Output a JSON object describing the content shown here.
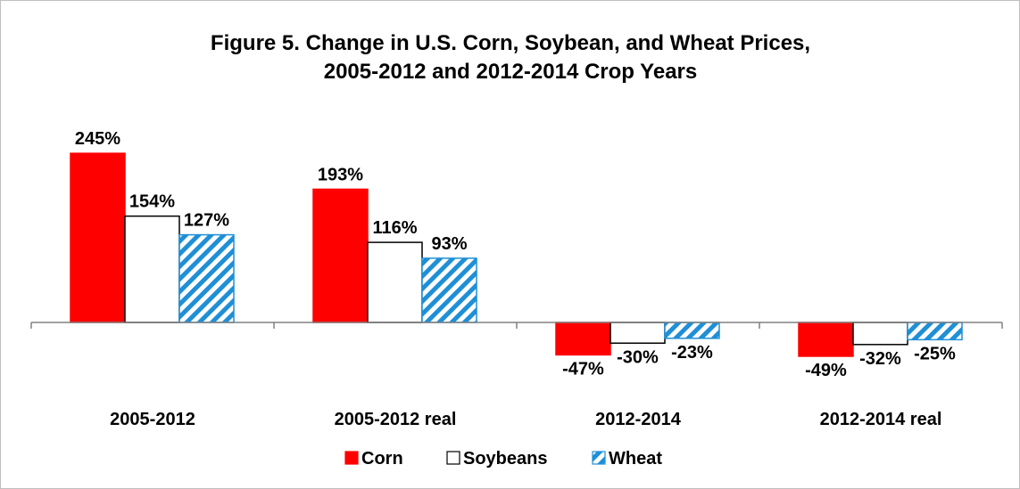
{
  "chart_data": {
    "type": "bar",
    "title": [
      "Figure 5. Change in U.S. Corn, Soybean, and Wheat Prices,",
      "2005-2012 and 2012-2014 Crop Years"
    ],
    "categories": [
      "2005-2012",
      "2005-2012 real",
      "2012-2014",
      "2012-2014 real"
    ],
    "series": [
      {
        "name": "Corn",
        "values": [
          245,
          193,
          -47,
          -49
        ],
        "labels": [
          "245%",
          "193%",
          "-47%",
          "-49%"
        ]
      },
      {
        "name": "Soybeans",
        "values": [
          154,
          116,
          -30,
          -32
        ],
        "labels": [
          "154%",
          "116%",
          "-30%",
          "-32%"
        ]
      },
      {
        "name": "Wheat",
        "values": [
          127,
          93,
          -23,
          -25
        ],
        "labels": [
          "127%",
          "93%",
          "-23%",
          "-25%"
        ]
      }
    ],
    "colors": {
      "corn": "#ff0000",
      "soybeans": "#ffffff",
      "wheat": "#1f8fd6",
      "outline": "#000000"
    },
    "legend": "bottom",
    "grid": false,
    "unit": "%"
  }
}
